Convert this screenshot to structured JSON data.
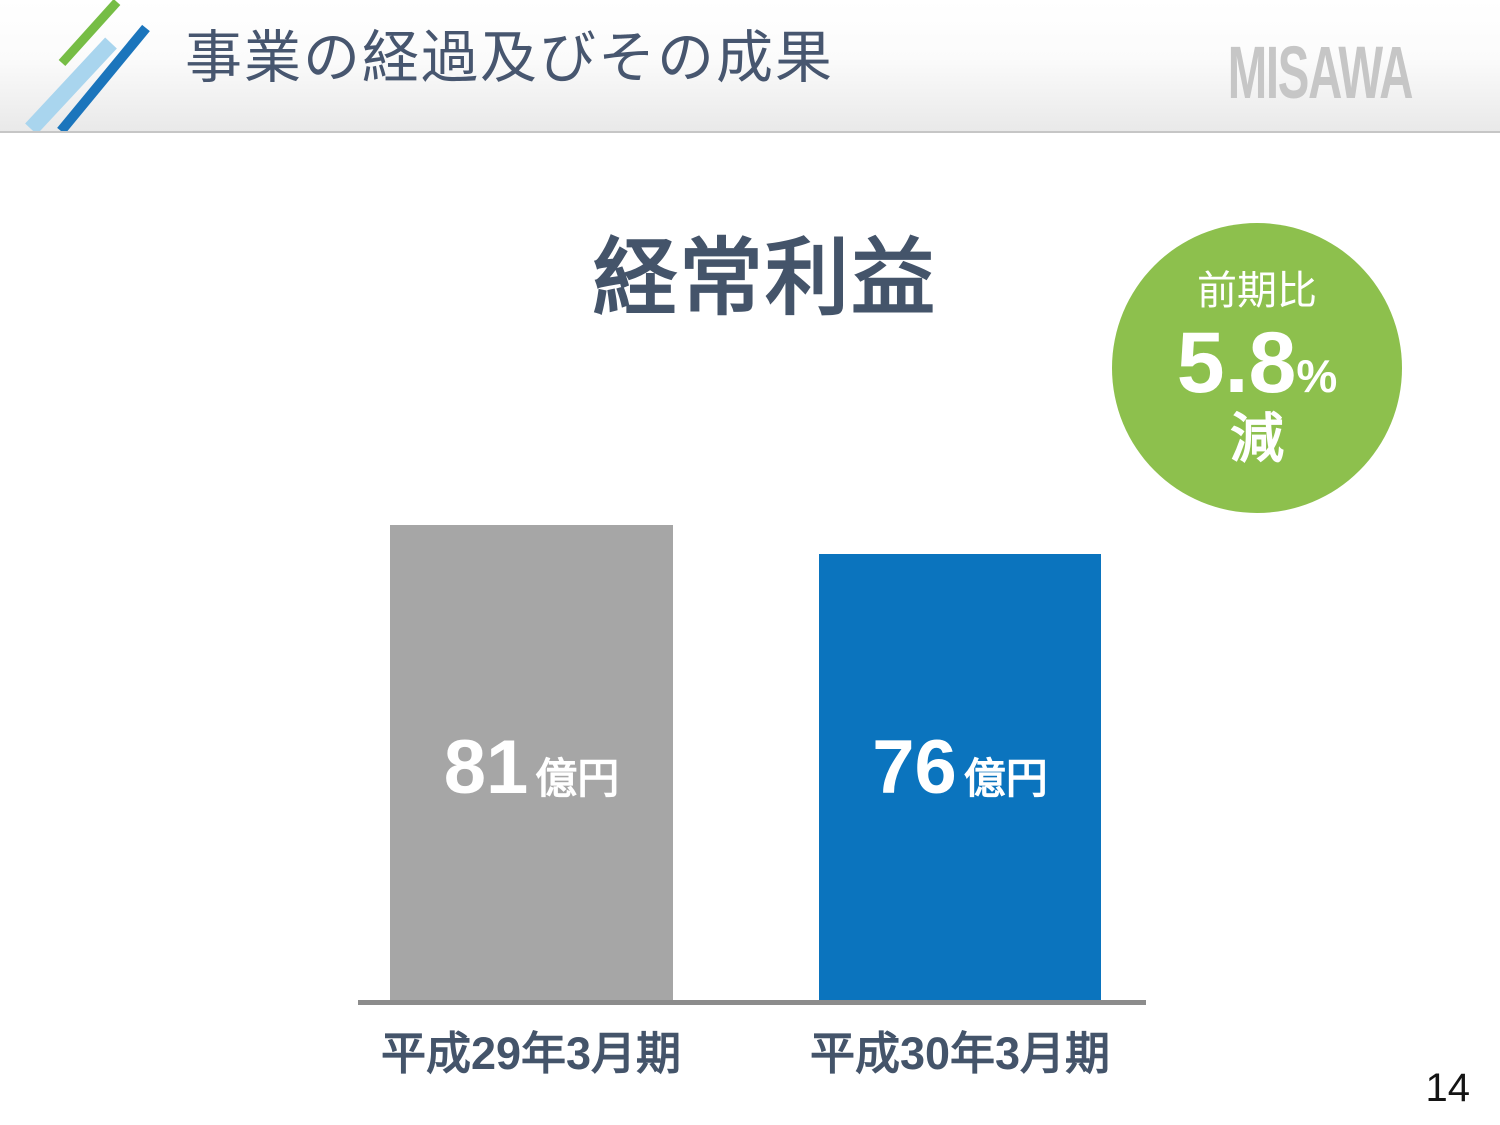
{
  "header": {
    "title": "事業の経過及びその成果",
    "brand": "MISAWA",
    "logo_colors": {
      "green": "#76BD45",
      "light_blue": "#A9D5EE",
      "blue": "#1B75BC"
    }
  },
  "chart_data": {
    "type": "bar",
    "title": "経常利益",
    "categories": [
      "平成29年3月期",
      "平成30年3月期"
    ],
    "values": [
      81,
      76
    ],
    "unit": "億円",
    "bar_colors": [
      "#A6A6A6",
      "#0B74BE"
    ],
    "ylim": [
      0,
      81
    ],
    "grid": false,
    "legend": false,
    "badge": {
      "label": "前期比",
      "value": "5.8",
      "percent": "%",
      "direction": "減",
      "color": "#8DC04D"
    }
  },
  "colors": {
    "text_navy": "#44546A",
    "header_title": "#47566F",
    "axis_gray": "#8C8C8C",
    "brand_gray": "#C6C6C6"
  },
  "page_number": "14"
}
